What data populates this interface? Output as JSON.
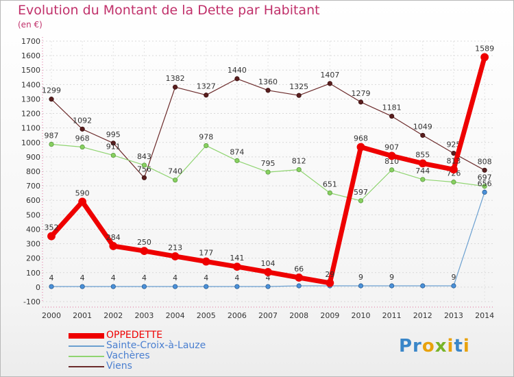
{
  "title": "Evolution du Montant de la Dette par Habitant",
  "subtitle": "(en €)",
  "logo_text": "Proxiti",
  "chart_data": {
    "type": "line",
    "title": "Evolution du Montant de la Dette par Habitant",
    "ylabel": "(en €)",
    "xlabel": "",
    "ylim": [
      -100,
      1700
    ],
    "y_ticks": [
      -100,
      0,
      100,
      200,
      300,
      400,
      500,
      600,
      700,
      800,
      900,
      1000,
      1100,
      1200,
      1300,
      1400,
      1500,
      1600,
      1700
    ],
    "categories": [
      "2000",
      "2001",
      "2002",
      "2003",
      "2004",
      "2005",
      "2006",
      "2007",
      "2008",
      "2009",
      "2010",
      "2011",
      "2012",
      "2013",
      "2014"
    ],
    "grid": true,
    "legend_position": "bottom-left",
    "series": [
      {
        "name": "Viens",
        "color": "#6b2a2a",
        "values": [
          1299,
          1092,
          995,
          756,
          1382,
          1327,
          1440,
          1360,
          1325,
          1407,
          1279,
          1181,
          1049,
          925,
          808
        ],
        "labels": [
          "1299",
          "1092",
          "995",
          "756",
          "1382",
          "1327",
          "1440",
          "1360",
          "1325",
          "1407",
          "1279",
          "1181",
          "1049",
          "925",
          "808"
        ]
      },
      {
        "name": "Vachères",
        "color": "#8fd470",
        "values": [
          987,
          968,
          911,
          843,
          740,
          978,
          874,
          795,
          812,
          651,
          597,
          810,
          744,
          726,
          697
        ],
        "labels": [
          "987",
          "968",
          "911",
          "843",
          "740",
          "978",
          "874",
          "795",
          "812",
          "651",
          "597",
          "810",
          "744",
          "726",
          "697"
        ]
      },
      {
        "name": "Sainte-Croix-à-Lauze",
        "color": "#6a9fd0",
        "values": [
          4,
          4,
          4,
          4,
          4,
          4,
          4,
          4,
          9,
          9,
          9,
          9,
          9,
          9,
          656
        ],
        "labels": [
          "4",
          "4",
          "4",
          "4",
          "4",
          "4",
          "4",
          "4",
          "9",
          "",
          "9",
          "9",
          "",
          "9",
          "656"
        ]
      },
      {
        "name": "OPPEDETTE",
        "color": "#ee0000",
        "values": [
          352,
          590,
          284,
          250,
          213,
          177,
          141,
          104,
          66,
          29,
          968,
          907,
          855,
          813,
          1589
        ],
        "labels": [
          "352",
          "590",
          "284",
          "250",
          "213",
          "177",
          "141",
          "104",
          "66",
          "29",
          "968",
          "907",
          "855",
          "813",
          "1589"
        ]
      }
    ],
    "legend_order": [
      "OPPEDETTE",
      "Sainte-Croix-à-Lauze",
      "Vachères",
      "Viens"
    ]
  }
}
